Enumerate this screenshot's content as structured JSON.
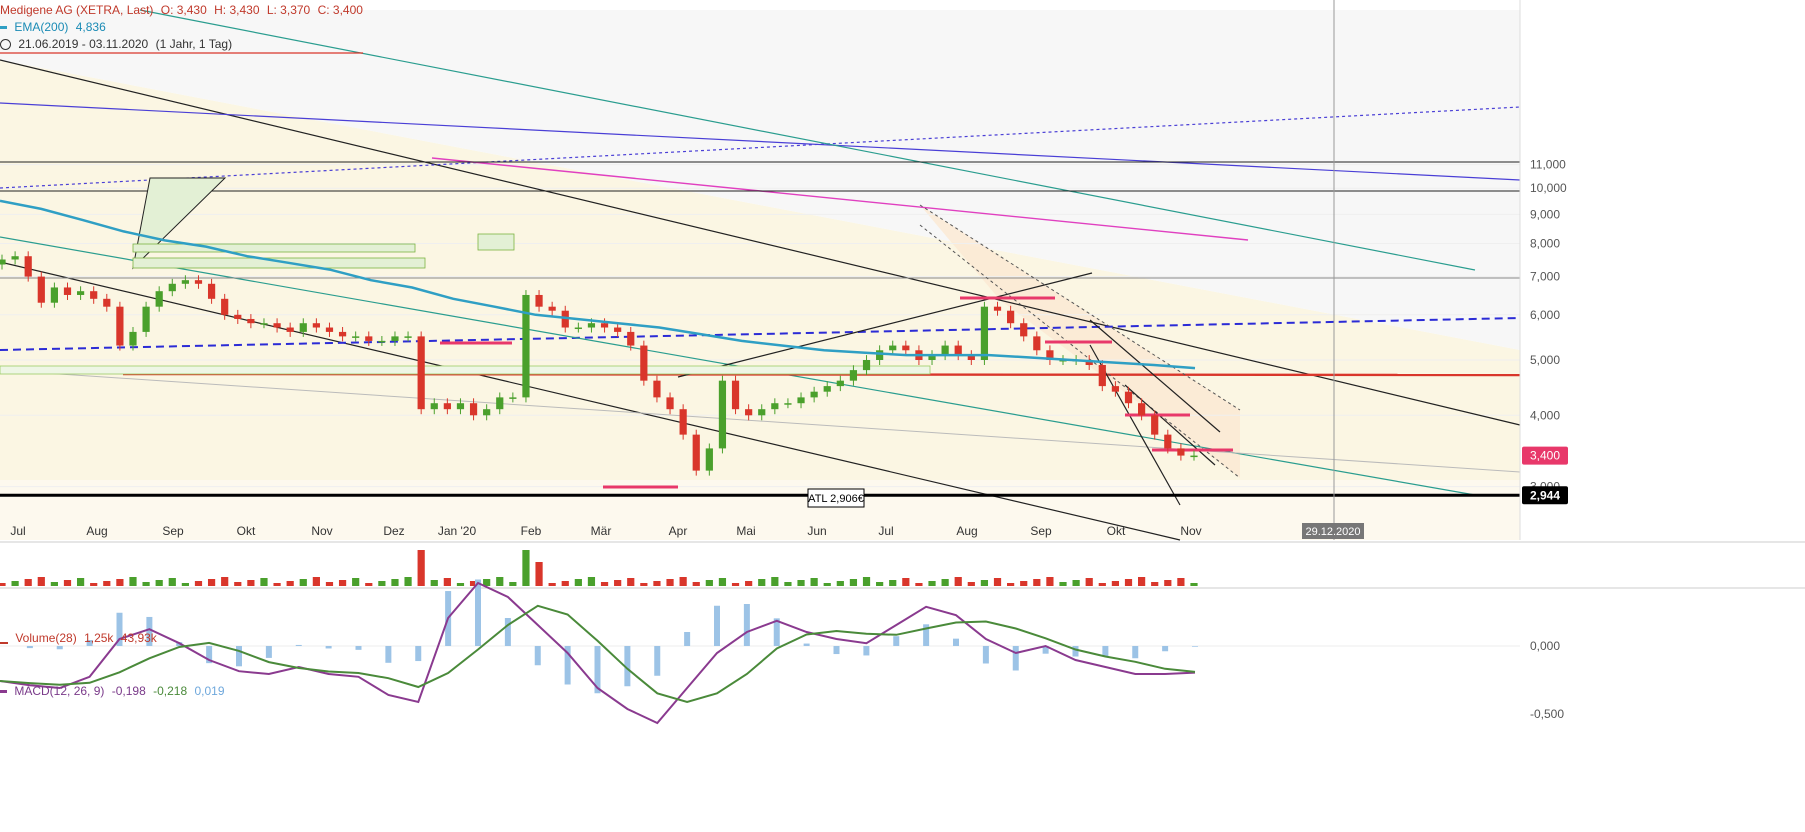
{
  "header": {
    "instrument": "Medigene AG (XETRA, Last)",
    "open": "O: 3,430",
    "high": "H: 3,430",
    "low": "L: 3,370",
    "close": "C: 3,400",
    "ema_label": "EMA(200)",
    "ema_value": "4,836",
    "date_range": "21.06.2019 - 03.11.2020",
    "period": "(1 Jahr, 1 Tag)"
  },
  "volume_panel": {
    "label": "Volume(28)",
    "v1": "1,25k",
    "v2": "43,93k"
  },
  "macd_panel": {
    "label": "MACD(12, 26, 9)",
    "v1": "-0,198",
    "v2": "-0,218",
    "v3": "0,019",
    "ticks": [
      "0,000",
      "-0,500"
    ]
  },
  "chart_data": {
    "type": "candlestick",
    "scale": "log",
    "y_ticks": [
      "11,000",
      "10,000",
      "9,000",
      "8,000",
      "7,000",
      "6,000",
      "5,000",
      "4,000",
      "3,000"
    ],
    "x_ticks": [
      "Jul",
      "Aug",
      "Sep",
      "Okt",
      "Nov",
      "Dez",
      "Jan '20",
      "Feb",
      "Mär",
      "Apr",
      "Mai",
      "Jun",
      "Jul",
      "Aug",
      "Sep",
      "Okt",
      "Nov"
    ],
    "cursor_date": "29.12.2020",
    "last_price": "3,400",
    "support_level": "2,944",
    "annotation": "ATL 2,906€",
    "colors": {
      "up": "#4aa02c",
      "down": "#d9362b",
      "ema": "#2f9fc4",
      "macd": "#8a3a8f",
      "signal": "#4a8a3a",
      "hist": "#9cc3e6"
    },
    "series": [
      {
        "name": "Price",
        "close": [
          7.5,
          7.6,
          7.0,
          6.3,
          6.7,
          6.5,
          6.6,
          6.4,
          6.2,
          5.3,
          5.6,
          6.2,
          6.6,
          6.8,
          6.9,
          6.8,
          6.4,
          6.0,
          5.9,
          5.8,
          5.8,
          5.7,
          5.6,
          5.8,
          5.7,
          5.6,
          5.5,
          5.5,
          5.4,
          5.4,
          5.5,
          5.5,
          4.1,
          4.2,
          4.1,
          4.2,
          4.0,
          4.1,
          4.3,
          4.3,
          6.5,
          6.2,
          6.1,
          5.7,
          5.7,
          5.8,
          5.7,
          5.6,
          5.3,
          4.6,
          4.3,
          4.1,
          3.7,
          3.2,
          3.5,
          4.6,
          4.1,
          4.0,
          4.1,
          4.2,
          4.2,
          4.3,
          4.4,
          4.5,
          4.6,
          4.8,
          5.0,
          5.2,
          5.3,
          5.2,
          5.0,
          5.1,
          5.3,
          5.1,
          5.0,
          6.2,
          6.1,
          5.8,
          5.5,
          5.2,
          5.0,
          5.0,
          5.0,
          4.9,
          4.5,
          4.4,
          4.2,
          4.0,
          3.7,
          3.5,
          3.4,
          3.4
        ]
      },
      {
        "name": "EMA(200)",
        "values": [
          9.5,
          9.2,
          8.8,
          8.4,
          8.1,
          7.9,
          7.6,
          7.4,
          7.2,
          6.9,
          6.7,
          6.4,
          6.2,
          6.0,
          5.9,
          5.8,
          5.7,
          5.55,
          5.4,
          5.3,
          5.2,
          5.15,
          5.1,
          5.1,
          5.1,
          5.05,
          5.0,
          4.95,
          4.9,
          4.84
        ]
      }
    ]
  }
}
